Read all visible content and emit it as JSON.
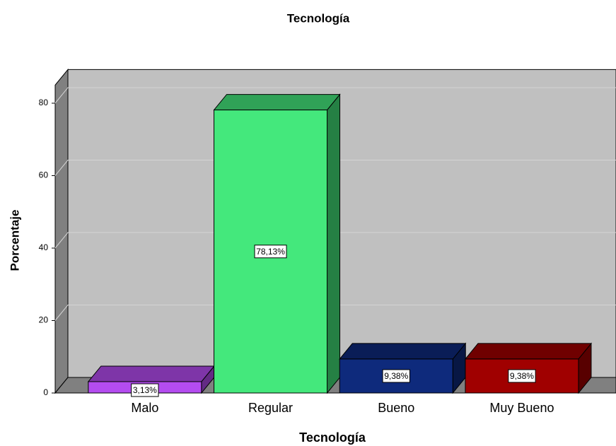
{
  "chart_data": {
    "type": "bar3d",
    "title": "Tecnología",
    "xlabel": "Tecnología",
    "ylabel": "Porcentaje",
    "categories": [
      "Malo",
      "Regular",
      "Bueno",
      "Muy Bueno"
    ],
    "values": [
      3.13,
      78.13,
      9.38,
      9.38
    ],
    "value_labels": [
      "3,13%",
      "78,13%",
      "9,38%",
      "9,38%"
    ],
    "colors": [
      "#b44cf0",
      "#44e87c",
      "#0e2a7c",
      "#a00000"
    ],
    "ylim": [
      0,
      85
    ],
    "yticks": [
      0,
      20,
      40,
      60,
      80
    ],
    "grid": true
  }
}
